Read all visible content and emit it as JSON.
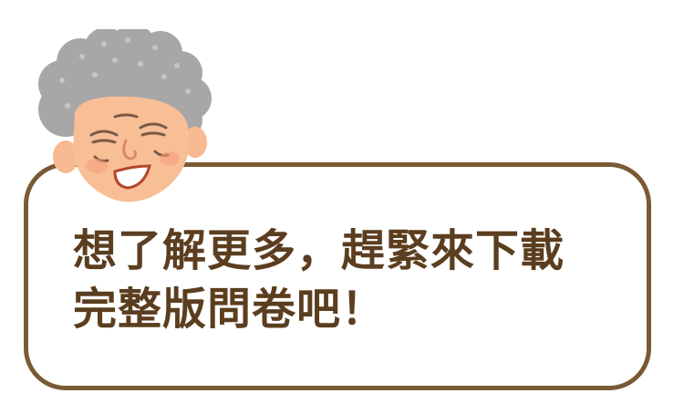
{
  "callout": {
    "line1": "想了解更多，趕緊來下載",
    "line2": "完整版問卷吧！"
  },
  "avatar": {
    "icon": "grandmother-icon",
    "hair_color": "#a9a6a8",
    "skin_color": "#f7b98f"
  },
  "colors": {
    "bubble_border": "#7a5a34",
    "text": "#5b3e1f",
    "background": "#ffffff"
  }
}
